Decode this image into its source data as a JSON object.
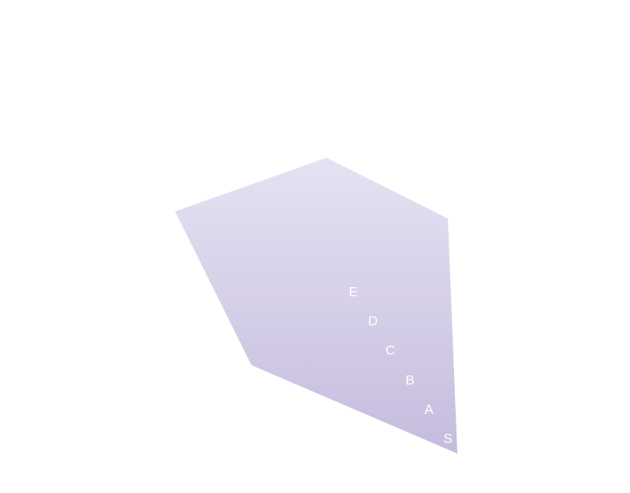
{
  "shape": {
    "fill_top": "#e6e2f2",
    "fill_bottom": "#c5bcdd"
  },
  "labels": [
    {
      "text": "E"
    },
    {
      "text": "D"
    },
    {
      "text": "C"
    },
    {
      "text": "B"
    },
    {
      "text": "A"
    },
    {
      "text": "S"
    }
  ]
}
